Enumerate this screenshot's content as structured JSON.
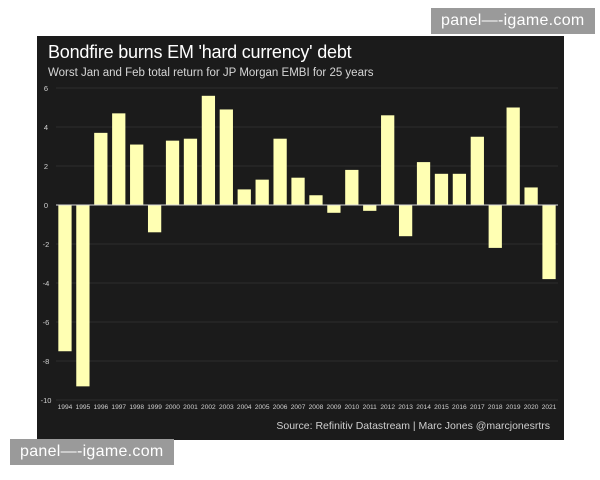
{
  "watermark": "panel—-igame.com",
  "colors": {
    "bar": "#ffffb3",
    "panel": "#1b1b1b",
    "grid": "#2e2e2e",
    "zero": "#d8d8d8"
  },
  "chart_data": {
    "type": "bar",
    "title": "Bondfire burns EM 'hard currency' debt",
    "subtitle": "Worst Jan and Feb total return for JP Morgan EMBI for 25 years",
    "source": "Source: Refinitiv Datastream | Marc Jones @marcjonesrtrs",
    "xlabel": "",
    "ylabel": "",
    "ylim": [
      -10,
      6
    ],
    "yticks": [
      6,
      4,
      2,
      0,
      -2,
      -4,
      -6,
      -8,
      -10
    ],
    "grid": true,
    "categories": [
      "1994",
      "1995",
      "1996",
      "1997",
      "1998",
      "1999",
      "2000",
      "2001",
      "2002",
      "2003",
      "2004",
      "2005",
      "2006",
      "2007",
      "2008",
      "2009",
      "2010",
      "2011",
      "2012",
      "2013",
      "2014",
      "2015",
      "2016",
      "2017",
      "2018",
      "2019",
      "2020",
      "2021"
    ],
    "values": [
      -7.5,
      -9.3,
      3.7,
      4.7,
      3.1,
      -1.4,
      3.3,
      3.4,
      5.6,
      4.9,
      0.8,
      1.3,
      3.4,
      1.4,
      0.5,
      -0.4,
      1.8,
      -0.3,
      4.6,
      -1.6,
      2.2,
      1.6,
      1.6,
      3.5,
      -2.2,
      5.0,
      0.9,
      -3.8
    ]
  }
}
